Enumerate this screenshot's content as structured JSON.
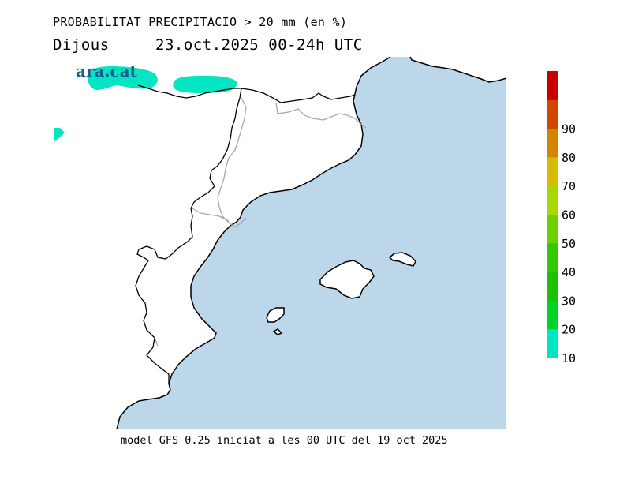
{
  "header": {
    "title": "PROBABILITAT PRECIPITACIO > 20 mm (en %)",
    "day": "Dijous",
    "date_range": "23.oct.2025 00-24h UTC"
  },
  "logo": {
    "text": "ara.cat"
  },
  "footer": {
    "text": "model GFS 0.25 iniciat a les 00 UTC del 19 oct 2025"
  },
  "map": {
    "sea_color": "#bdd7ea",
    "land_color": "#ffffff",
    "coast_color": "#000000",
    "border_color": "#a8a8a8",
    "precip_color": "#00e6c3"
  },
  "legend": {
    "bins": [
      {
        "label": "10",
        "color": "#00e6c3"
      },
      {
        "label": "20",
        "color": "#00d424"
      },
      {
        "label": "30",
        "color": "#1ec000"
      },
      {
        "label": "40",
        "color": "#36c800"
      },
      {
        "label": "50",
        "color": "#6ed000"
      },
      {
        "label": "60",
        "color": "#a8d800"
      },
      {
        "label": "70",
        "color": "#d7bb00"
      },
      {
        "label": "80",
        "color": "#d08600"
      },
      {
        "label": "90",
        "color": "#d04800"
      },
      {
        "label": "",
        "color": "#c80000"
      }
    ]
  }
}
